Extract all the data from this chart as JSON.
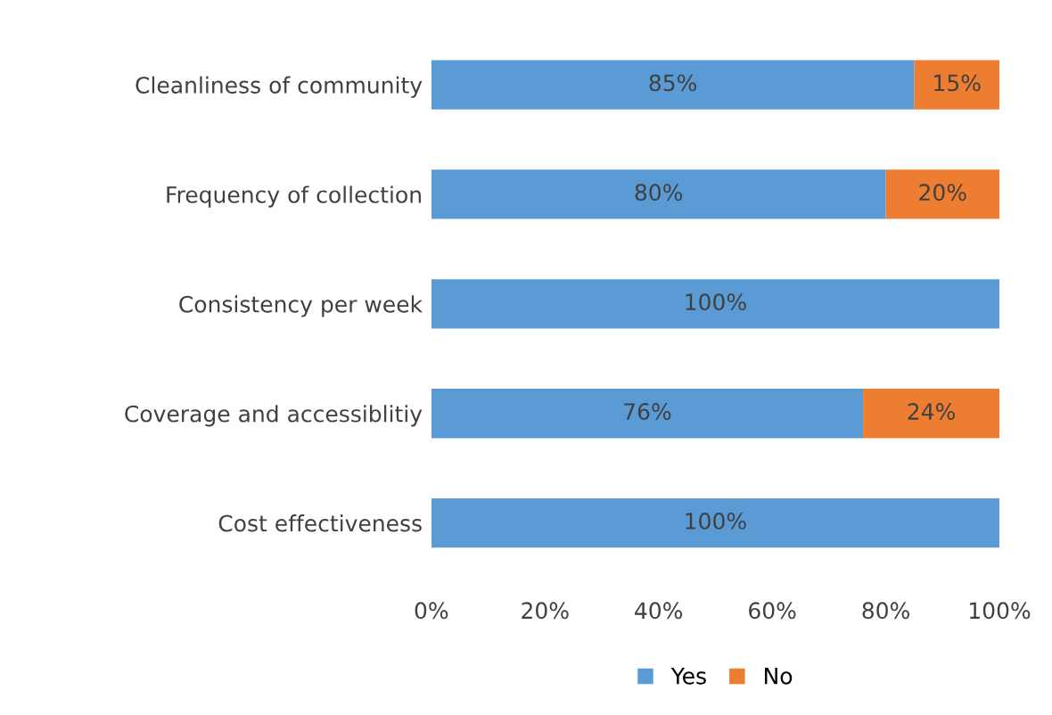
{
  "chart_data": {
    "type": "bar",
    "orientation": "horizontal",
    "stacked": true,
    "categories": [
      "Cleanliness of community",
      "Frequency of collection",
      "Consistency per week",
      "Coverage and accessiblitiy",
      "Cost effectiveness"
    ],
    "series": [
      {
        "name": "Yes",
        "color": "#5b9bd5",
        "values": [
          85,
          80,
          100,
          76,
          100
        ],
        "value_labels": [
          "85%",
          "80%",
          "100%",
          "76%",
          "100%"
        ]
      },
      {
        "name": "No",
        "color": "#ed7d31",
        "values": [
          15,
          20,
          null,
          24,
          null
        ],
        "value_labels": [
          "15%",
          "20%",
          null,
          "24%",
          null
        ]
      }
    ],
    "xlim": [
      0,
      100
    ],
    "xticks": [
      {
        "value": 0,
        "label": "0%"
      },
      {
        "value": 20,
        "label": "20%"
      },
      {
        "value": 40,
        "label": "40%"
      },
      {
        "value": 60,
        "label": "60%"
      },
      {
        "value": 80,
        "label": "80%"
      },
      {
        "value": 100,
        "label": "100%"
      }
    ],
    "legend": "bottom"
  }
}
